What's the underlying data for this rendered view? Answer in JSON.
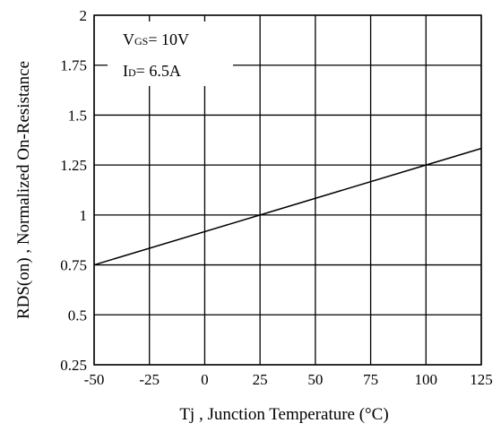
{
  "chart_data": {
    "type": "line",
    "xlabel": "Tj , Junction Temperature (°C)",
    "ylabel": "RDS(on) , Normalized On-Resistance",
    "xlim": [
      -50,
      125
    ],
    "ylim": [
      0.25,
      2
    ],
    "x_ticks": [
      "-50",
      "-25",
      "0",
      "25",
      "50",
      "75",
      "100",
      "125"
    ],
    "y_ticks": [
      "0.25",
      "0.5",
      "0.75",
      "1",
      "1.25",
      "1.5",
      "1.75",
      "2"
    ],
    "grid": true,
    "annotation": {
      "line1": {
        "main": "V",
        "sub": "GS",
        "rest": "= 10V"
      },
      "line2": {
        "main": "I",
        "sub": "D",
        "rest": "= 6.5A"
      }
    },
    "series": [
      {
        "x": [
          -50,
          25,
          100,
          125
        ],
        "y": [
          0.75,
          1.0,
          1.25,
          1.333
        ]
      }
    ]
  }
}
